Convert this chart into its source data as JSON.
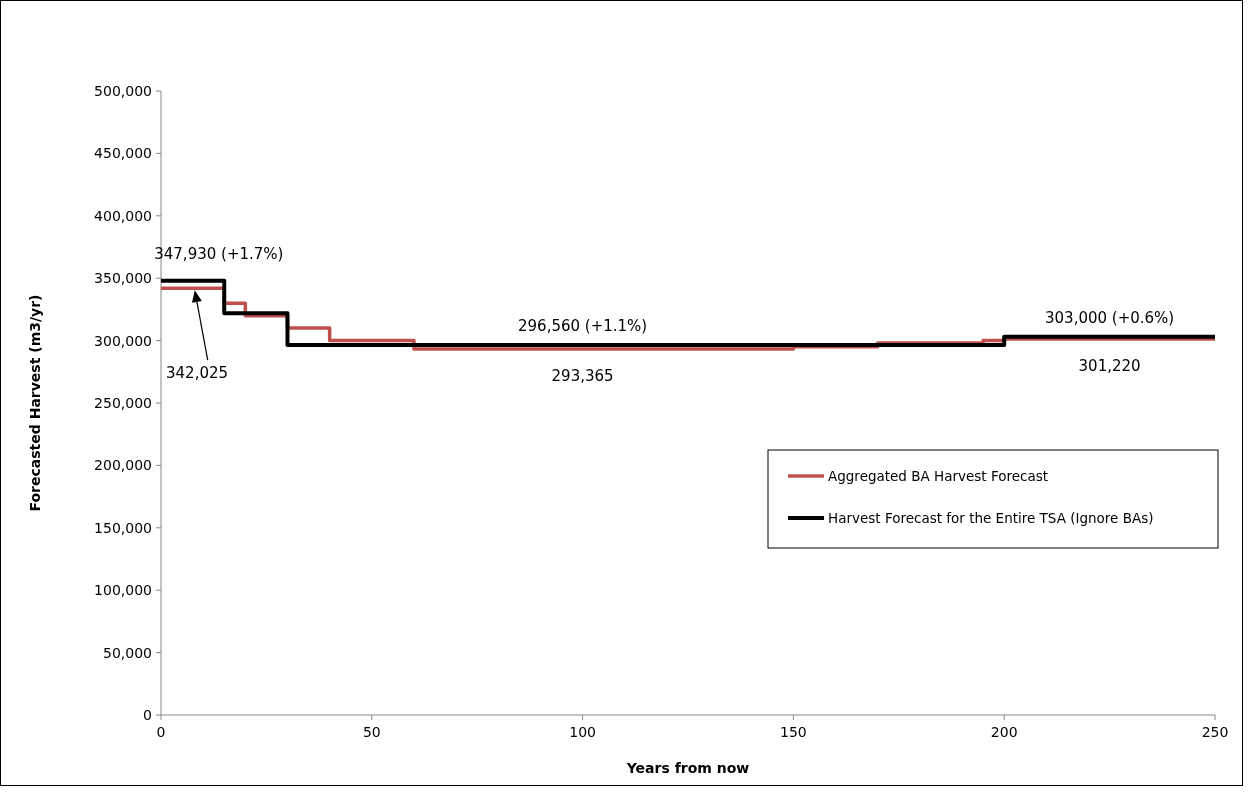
{
  "chart_data": {
    "type": "step",
    "xlabel": "Years from now",
    "ylabel": "Forecasted Harvest (m3/yr)",
    "xlim": [
      0,
      250
    ],
    "xticks": [
      0,
      50,
      100,
      150,
      200,
      250
    ],
    "ylim": [
      0,
      500000
    ],
    "yticks": [
      {
        "value": 0,
        "label": "0"
      },
      {
        "value": 50000,
        "label": "50,000"
      },
      {
        "value": 100000,
        "label": "100,000"
      },
      {
        "value": 150000,
        "label": "150,000"
      },
      {
        "value": 200000,
        "label": "200,000"
      },
      {
        "value": 250000,
        "label": "250,000"
      },
      {
        "value": 300000,
        "label": "300,000"
      },
      {
        "value": 350000,
        "label": "350,000"
      },
      {
        "value": 400000,
        "label": "400,000"
      },
      {
        "value": 450000,
        "label": "450,000"
      },
      {
        "value": 500000,
        "label": "500,000"
      }
    ],
    "series": [
      {
        "name": "Aggregated BA Harvest Forecast",
        "color": "#c0504d",
        "x": [
          0,
          15,
          20,
          30,
          40,
          60,
          150,
          170,
          195,
          200,
          250
        ],
        "values": [
          342025,
          330000,
          320000,
          310000,
          300000,
          293365,
          295000,
          298000,
          300000,
          301220,
          301220
        ]
      },
      {
        "name": "Harvest Forecast for the Entire TSA (Ignore BAs)",
        "color": "#000000",
        "x": [
          0,
          15,
          30,
          200,
          250
        ],
        "values": [
          347930,
          322000,
          296560,
          303000,
          303000
        ]
      }
    ],
    "annotations": [
      {
        "text": "347,930  (+1.7%)",
        "x": 15,
        "y": 347930
      },
      "342,025",
      {
        "text": "296,560  (+1.1%)",
        "x": 100,
        "y": 296560
      },
      {
        "text": "293,365",
        "x": 100,
        "y": 293365
      },
      {
        "text": "303,000  (+0.6%)",
        "x": 225,
        "y": 303000
      },
      {
        "text": "301,220",
        "x": 225,
        "y": 301220
      }
    ],
    "legend": "right",
    "grid": false,
    "marker": "none",
    "line_style": "solid"
  }
}
